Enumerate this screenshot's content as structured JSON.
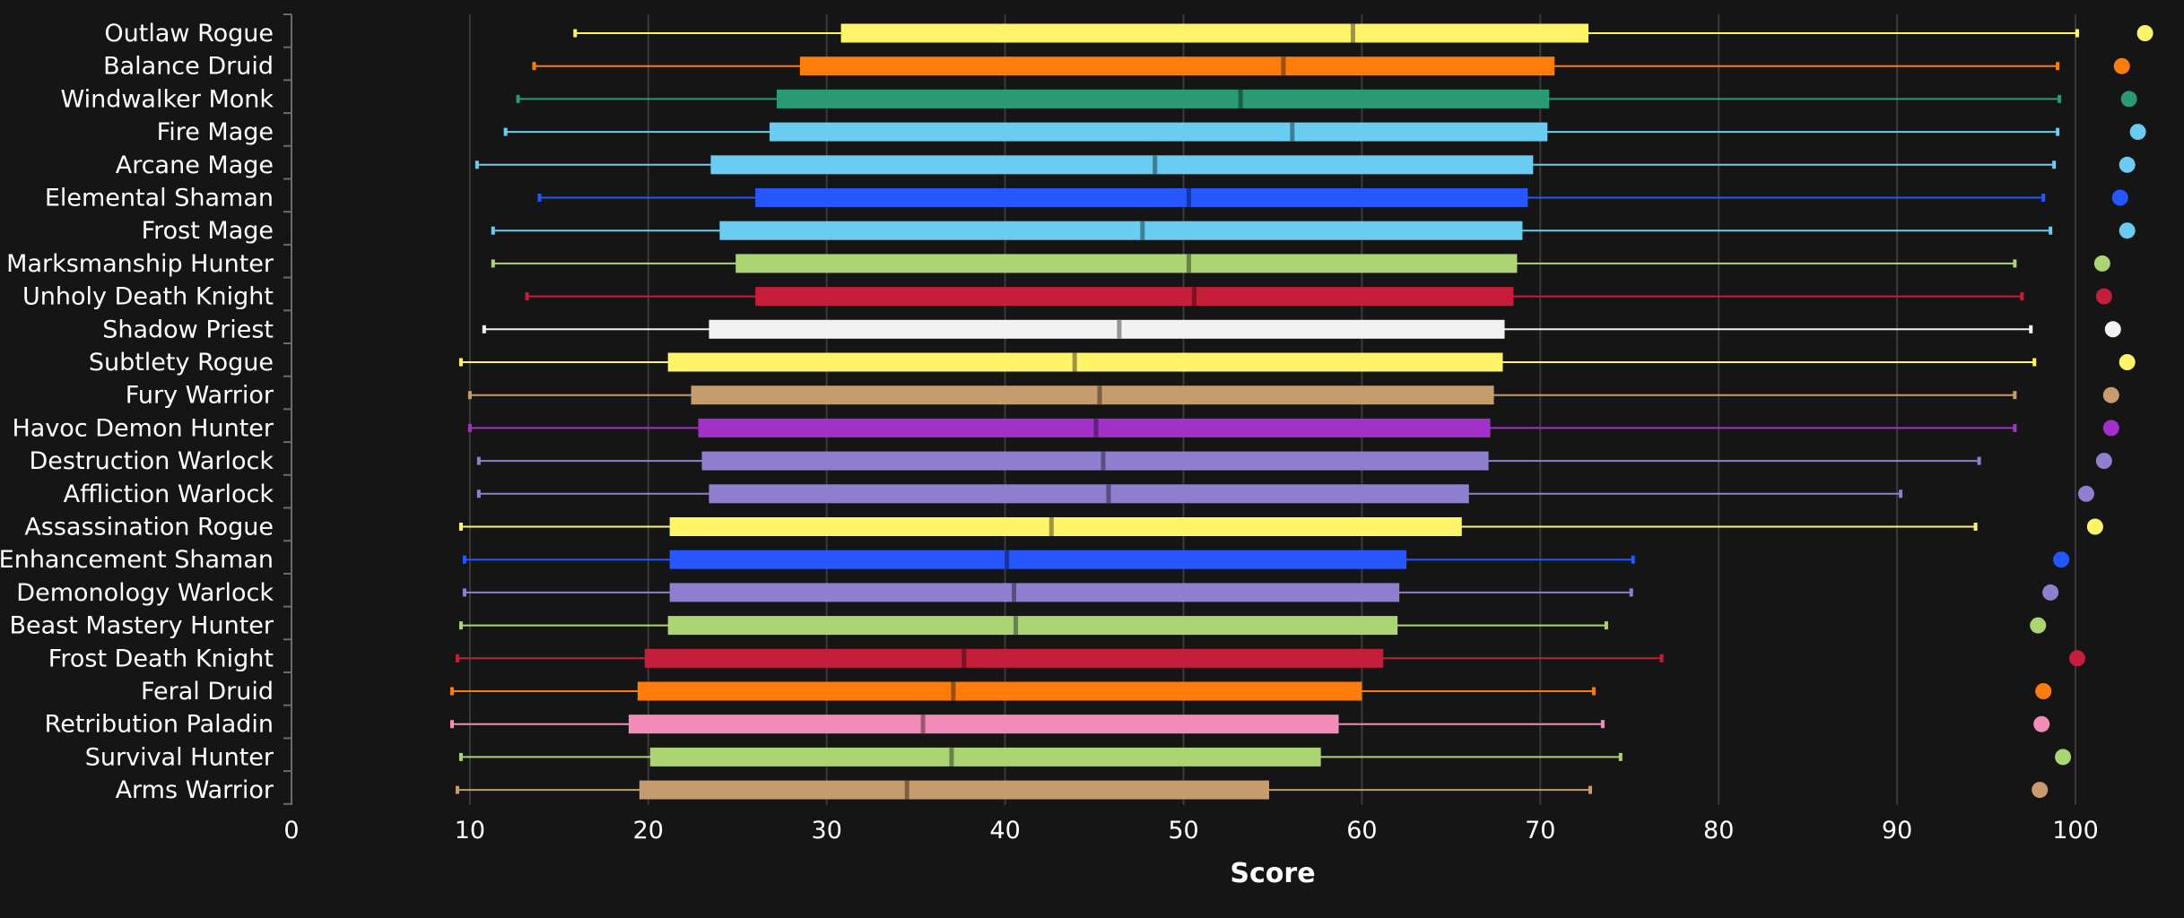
{
  "chart_data": {
    "type": "boxplot",
    "title": "",
    "xlabel": "Score",
    "ylabel": "",
    "xlim": [
      0,
      100
    ],
    "x_ticks": [
      "0",
      "10",
      "20",
      "30",
      "40",
      "50",
      "60",
      "70",
      "80",
      "90",
      "100"
    ],
    "grid": "vertical",
    "background": "#151515",
    "text_color": "#ffffff",
    "gridline_color": "#3a3a3a",
    "series": [
      {
        "name": "Outlaw Rogue",
        "color": "#fff468",
        "min": 15.9,
        "q1": 30.8,
        "median": 59.5,
        "q3": 72.7,
        "max": 100.1,
        "outlier": 103.9
      },
      {
        "name": "Balance Druid",
        "color": "#ff7c0a",
        "min": 13.6,
        "q1": 28.5,
        "median": 55.6,
        "q3": 70.8,
        "max": 99.0,
        "outlier": 102.6
      },
      {
        "name": "Windwalker Monk",
        "color": "#2a9a73",
        "min": 12.7,
        "q1": 27.2,
        "median": 53.2,
        "q3": 70.5,
        "max": 99.1,
        "outlier": 103.0
      },
      {
        "name": "Fire Mage",
        "color": "#69ccf0",
        "min": 12.0,
        "q1": 26.8,
        "median": 56.1,
        "q3": 70.4,
        "max": 99.0,
        "outlier": 103.5
      },
      {
        "name": "Arcane Mage",
        "color": "#69ccf0",
        "min": 10.4,
        "q1": 23.5,
        "median": 48.4,
        "q3": 69.6,
        "max": 98.8,
        "outlier": 102.9
      },
      {
        "name": "Elemental Shaman",
        "color": "#2556ff",
        "min": 13.9,
        "q1": 26.0,
        "median": 50.3,
        "q3": 69.3,
        "max": 98.2,
        "outlier": 102.5
      },
      {
        "name": "Frost Mage",
        "color": "#69ccf0",
        "min": 11.3,
        "q1": 24.0,
        "median": 47.7,
        "q3": 69.0,
        "max": 98.6,
        "outlier": 102.9
      },
      {
        "name": "Marksmanship Hunter",
        "color": "#abd473",
        "min": 11.3,
        "q1": 24.9,
        "median": 50.3,
        "q3": 68.7,
        "max": 96.6,
        "outlier": 101.5
      },
      {
        "name": "Unholy Death Knight",
        "color": "#c41e3a",
        "min": 13.2,
        "q1": 26.0,
        "median": 50.6,
        "q3": 68.5,
        "max": 97.0,
        "outlier": 101.6
      },
      {
        "name": "Shadow Priest",
        "color": "#f2f2f2",
        "min": 10.8,
        "q1": 23.4,
        "median": 46.4,
        "q3": 68.0,
        "max": 97.5,
        "outlier": 102.1
      },
      {
        "name": "Subtlety Rogue",
        "color": "#fff468",
        "min": 9.5,
        "q1": 21.1,
        "median": 43.9,
        "q3": 67.9,
        "max": 97.7,
        "outlier": 102.9
      },
      {
        "name": "Fury Warrior",
        "color": "#c69b6d",
        "min": 10.0,
        "q1": 22.4,
        "median": 45.3,
        "q3": 67.4,
        "max": 96.6,
        "outlier": 102.0
      },
      {
        "name": "Havoc Demon Hunter",
        "color": "#a330c9",
        "min": 10.0,
        "q1": 22.8,
        "median": 45.1,
        "q3": 67.2,
        "max": 96.6,
        "outlier": 102.0
      },
      {
        "name": "Destruction Warlock",
        "color": "#8f7fce",
        "min": 10.5,
        "q1": 23.0,
        "median": 45.5,
        "q3": 67.1,
        "max": 94.6,
        "outlier": 101.6
      },
      {
        "name": "Affliction Warlock",
        "color": "#8f7fce",
        "min": 10.5,
        "q1": 23.4,
        "median": 45.8,
        "q3": 66.0,
        "max": 90.2,
        "outlier": 100.6
      },
      {
        "name": "Assassination Rogue",
        "color": "#fff468",
        "min": 9.5,
        "q1": 21.2,
        "median": 42.6,
        "q3": 65.6,
        "max": 94.4,
        "outlier": 101.1
      },
      {
        "name": "Enhancement Shaman",
        "color": "#2556ff",
        "min": 9.7,
        "q1": 21.2,
        "median": 40.1,
        "q3": 62.5,
        "max": 75.2,
        "outlier": 99.2
      },
      {
        "name": "Demonology Warlock",
        "color": "#8f7fce",
        "min": 9.7,
        "q1": 21.2,
        "median": 40.5,
        "q3": 62.1,
        "max": 75.1,
        "outlier": 98.6
      },
      {
        "name": "Beast Mastery Hunter",
        "color": "#abd473",
        "min": 9.5,
        "q1": 21.1,
        "median": 40.6,
        "q3": 62.0,
        "max": 73.7,
        "outlier": 97.9
      },
      {
        "name": "Frost Death Knight",
        "color": "#c41e3a",
        "min": 9.3,
        "q1": 19.8,
        "median": 37.7,
        "q3": 61.2,
        "max": 76.8,
        "outlier": 100.1
      },
      {
        "name": "Feral Druid",
        "color": "#ff7c0a",
        "min": 9.0,
        "q1": 19.4,
        "median": 37.1,
        "q3": 60.0,
        "max": 73.0,
        "outlier": 98.2
      },
      {
        "name": "Retribution Paladin",
        "color": "#f48cba",
        "min": 9.0,
        "q1": 18.9,
        "median": 35.4,
        "q3": 58.7,
        "max": 73.5,
        "outlier": 98.1
      },
      {
        "name": "Survival Hunter",
        "color": "#abd473",
        "min": 9.5,
        "q1": 20.1,
        "median": 37.0,
        "q3": 57.7,
        "max": 74.5,
        "outlier": 99.3
      },
      {
        "name": "Arms Warrior",
        "color": "#c69b6d",
        "min": 9.3,
        "q1": 19.5,
        "median": 34.5,
        "q3": 54.8,
        "max": 72.8,
        "outlier": 98.0
      }
    ]
  }
}
